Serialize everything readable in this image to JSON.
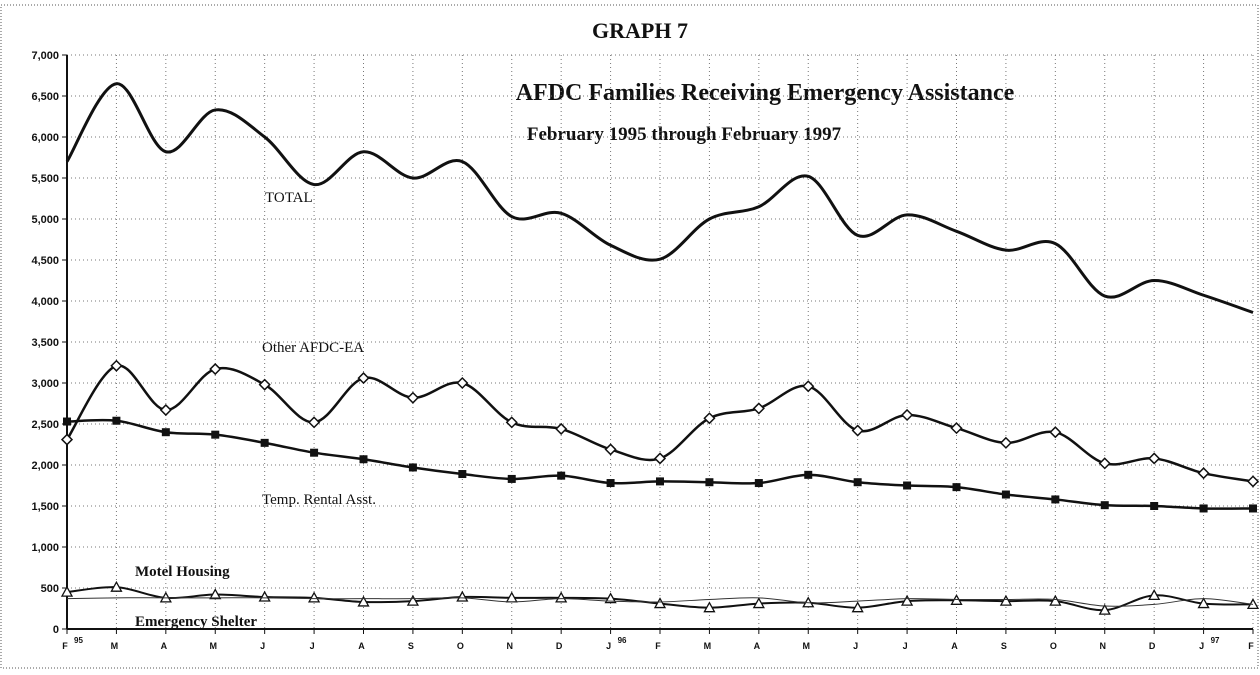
{
  "chart_data": {
    "type": "line",
    "heading": "GRAPH 7",
    "title": "AFDC Families Receiving Emergency Assistance",
    "subtitle": "February 1995 through February 1997",
    "categories": [
      "F",
      "M",
      "A",
      "M",
      "J",
      "J",
      "A",
      "S",
      "O",
      "N",
      "D",
      "J",
      "F",
      "M",
      "A",
      "M",
      "J",
      "J",
      "A",
      "S",
      "O",
      "N",
      "D",
      "J",
      "F"
    ],
    "category_years": [
      "95",
      null,
      null,
      null,
      null,
      null,
      null,
      null,
      null,
      null,
      null,
      "96",
      null,
      null,
      null,
      null,
      null,
      null,
      null,
      null,
      null,
      null,
      null,
      "97",
      null
    ],
    "ylim": [
      0,
      7000
    ],
    "yticks": [
      0,
      500,
      {
        "value": 1000,
        "label": "1,000"
      },
      {
        "value": 1500,
        "label": "1,500"
      },
      {
        "value": 2000,
        "label": "2,000"
      },
      {
        "value": 2500,
        "label": "2,500"
      },
      {
        "value": 3000,
        "label": "3,000"
      },
      {
        "value": 3500,
        "label": "3,500"
      },
      {
        "value": 4000,
        "label": "4,000"
      },
      {
        "value": 4500,
        "label": "4,500"
      },
      {
        "value": 5000,
        "label": "5,000"
      },
      {
        "value": 5500,
        "label": "5,500"
      },
      {
        "value": 6000,
        "label": "6,000"
      },
      {
        "value": 6500,
        "label": "6,500"
      },
      {
        "value": 7000,
        "label": "7,000"
      }
    ],
    "grid": true,
    "series": [
      {
        "name": "TOTAL",
        "color": "#111111",
        "marker": "none",
        "values": [
          5700,
          6650,
          5820,
          6330,
          6000,
          5420,
          5820,
          5500,
          5700,
          5030,
          5070,
          4680,
          4510,
          5000,
          5150,
          5520,
          4800,
          5050,
          4850,
          4620,
          4700,
          4060,
          4250,
          4070,
          3860
        ]
      },
      {
        "name": "Other AFDC-EA",
        "color": "#111111",
        "marker": "diamond",
        "values": [
          2310,
          3210,
          2670,
          3170,
          2980,
          2520,
          3060,
          2820,
          3000,
          2520,
          2440,
          2190,
          2080,
          2570,
          2690,
          2960,
          2420,
          2610,
          2450,
          2270,
          2400,
          2020,
          2080,
          1900,
          1800
        ]
      },
      {
        "name": "Temp. Rental Asst.",
        "color": "#111111",
        "marker": "square",
        "values": [
          2530,
          2540,
          2400,
          2370,
          2270,
          2150,
          2070,
          1970,
          1890,
          1830,
          1870,
          1780,
          1800,
          1790,
          1780,
          1880,
          1790,
          1750,
          1730,
          1640,
          1580,
          1510,
          1500,
          1470,
          1470
        ]
      },
      {
        "name": "Motel Housing",
        "color": "#111111",
        "marker": "triangle",
        "values": [
          450,
          510,
          380,
          420,
          390,
          380,
          330,
          340,
          390,
          380,
          380,
          370,
          310,
          260,
          310,
          320,
          260,
          340,
          350,
          340,
          340,
          230,
          410,
          310,
          300
        ]
      },
      {
        "name": "Emergency Shelter",
        "color": "#333333",
        "marker": "none",
        "values": [
          370,
          380,
          380,
          380,
          380,
          370,
          370,
          370,
          380,
          330,
          370,
          340,
          330,
          360,
          380,
          320,
          340,
          370,
          360,
          360,
          360,
          280,
          300,
          370,
          300
        ]
      }
    ]
  }
}
